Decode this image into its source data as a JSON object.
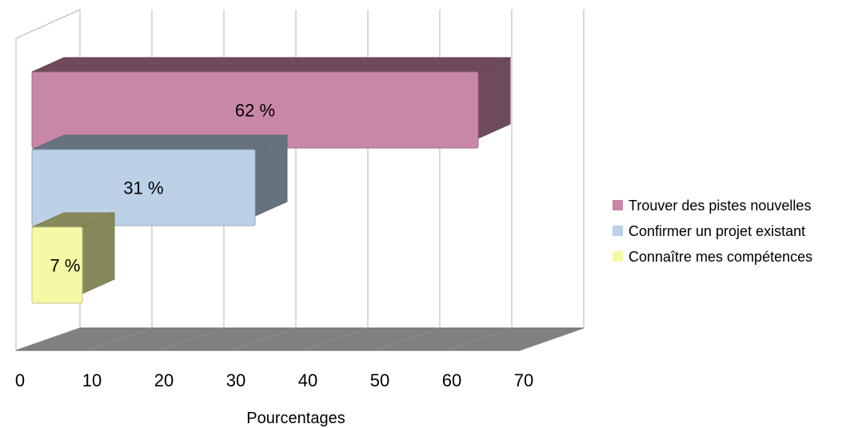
{
  "chart_data": {
    "type": "bar",
    "orientation": "horizontal",
    "three_d": true,
    "xlabel": "Pourcentages",
    "ylabel": "",
    "xlim": [
      0,
      70
    ],
    "x_ticks": [
      0,
      10,
      20,
      30,
      40,
      50,
      60,
      70
    ],
    "grid": true,
    "legend_position": "right",
    "series": [
      {
        "name": "Trouver des pistes nouvelles",
        "value": 62,
        "label": "62 %",
        "color": "#C987A8"
      },
      {
        "name": "Confirmer un projet existant",
        "value": 31,
        "label": "31 %",
        "color": "#BCD0E6"
      },
      {
        "name": "Connaître mes compétences",
        "value": 7,
        "label": "7 %",
        "color": "#F5F9A5"
      }
    ]
  }
}
